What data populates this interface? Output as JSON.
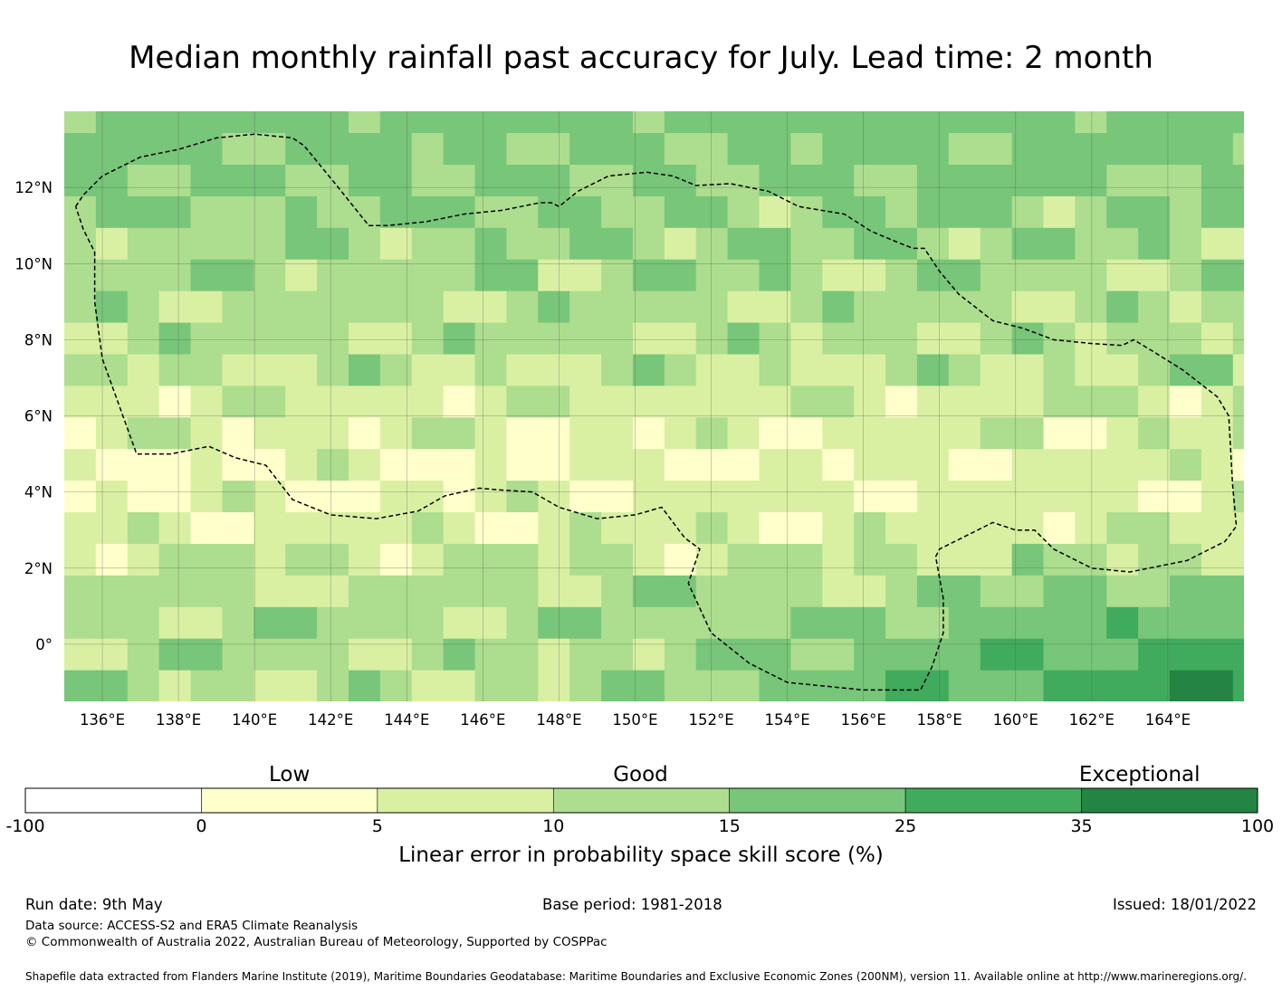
{
  "title": "Median monthly rainfall past accuracy for July. Lead time: 2 month",
  "map": {
    "lon_range": [
      135,
      166
    ],
    "lat_range": [
      -1.5,
      14
    ],
    "x_ticks": [
      {
        "value": 136,
        "label": "136°E"
      },
      {
        "value": 138,
        "label": "138°E"
      },
      {
        "value": 140,
        "label": "140°E"
      },
      {
        "value": 142,
        "label": "142°E"
      },
      {
        "value": 144,
        "label": "144°E"
      },
      {
        "value": 146,
        "label": "146°E"
      },
      {
        "value": 148,
        "label": "148°E"
      },
      {
        "value": 150,
        "label": "150°E"
      },
      {
        "value": 152,
        "label": "152°E"
      },
      {
        "value": 154,
        "label": "154°E"
      },
      {
        "value": 156,
        "label": "156°E"
      },
      {
        "value": 158,
        "label": "158°E"
      },
      {
        "value": 160,
        "label": "160°E"
      },
      {
        "value": 162,
        "label": "162°E"
      },
      {
        "value": 164,
        "label": "164°E"
      }
    ],
    "y_ticks": [
      {
        "value": 12,
        "label": "12°N"
      },
      {
        "value": 10,
        "label": "10°N"
      },
      {
        "value": 8,
        "label": "8°N"
      },
      {
        "value": 6,
        "label": "6°N"
      },
      {
        "value": 4,
        "label": "4°N"
      },
      {
        "value": 2,
        "label": "2°N"
      },
      {
        "value": 0,
        "label": "0°"
      }
    ],
    "grid": true,
    "eez_boundary": [
      [
        135.3,
        11.5
      ],
      [
        135.5,
        11.8
      ],
      [
        136.0,
        12.3
      ],
      [
        137.0,
        12.8
      ],
      [
        138.0,
        13.0
      ],
      [
        139.0,
        13.3
      ],
      [
        140.0,
        13.4
      ],
      [
        141.0,
        13.3
      ],
      [
        141.3,
        13.1
      ],
      [
        142.2,
        12.0
      ],
      [
        143.0,
        11.0
      ],
      [
        143.5,
        11.0
      ],
      [
        144.5,
        11.1
      ],
      [
        145.5,
        11.3
      ],
      [
        146.5,
        11.4
      ],
      [
        147.5,
        11.6
      ],
      [
        147.8,
        11.6
      ],
      [
        148.0,
        11.5
      ],
      [
        148.5,
        11.9
      ],
      [
        149.3,
        12.3
      ],
      [
        150.3,
        12.4
      ],
      [
        151.0,
        12.3
      ],
      [
        151.6,
        12.05
      ],
      [
        152.5,
        12.1
      ],
      [
        153.5,
        11.9
      ],
      [
        154.3,
        11.5
      ],
      [
        155.5,
        11.3
      ],
      [
        156.2,
        10.85
      ],
      [
        156.8,
        10.6
      ],
      [
        157.3,
        10.4
      ],
      [
        157.6,
        10.4
      ],
      [
        158.0,
        9.8
      ],
      [
        158.5,
        9.2
      ],
      [
        159.4,
        8.5
      ],
      [
        160.2,
        8.3
      ],
      [
        161.0,
        8.0
      ],
      [
        162.0,
        7.9
      ],
      [
        162.8,
        7.85
      ],
      [
        163.1,
        8.0
      ],
      [
        163.6,
        7.7
      ],
      [
        164.4,
        7.2
      ],
      [
        165.3,
        6.5
      ],
      [
        165.6,
        6.0
      ],
      [
        165.7,
        4.2
      ],
      [
        165.8,
        3.1
      ],
      [
        165.5,
        2.7
      ],
      [
        164.5,
        2.2
      ],
      [
        163.0,
        1.9
      ],
      [
        162.0,
        2.0
      ],
      [
        161.0,
        2.5
      ],
      [
        160.5,
        3.0
      ],
      [
        160.0,
        3.0
      ],
      [
        159.4,
        3.2
      ],
      [
        158.8,
        2.9
      ],
      [
        158.0,
        2.5
      ],
      [
        157.9,
        2.3
      ],
      [
        158.1,
        1.2
      ],
      [
        158.1,
        0.3
      ],
      [
        157.8,
        -0.6
      ],
      [
        157.5,
        -1.2
      ],
      [
        156.0,
        -1.2
      ],
      [
        154.0,
        -1.0
      ],
      [
        153.0,
        -0.5
      ],
      [
        152.0,
        0.3
      ],
      [
        151.4,
        1.6
      ],
      [
        151.7,
        2.5
      ],
      [
        151.3,
        2.8
      ],
      [
        150.7,
        3.6
      ],
      [
        150.0,
        3.4
      ],
      [
        149.0,
        3.3
      ],
      [
        148.0,
        3.6
      ],
      [
        147.3,
        4.0
      ],
      [
        146.5,
        4.05
      ],
      [
        145.9,
        4.1
      ],
      [
        145.0,
        3.9
      ],
      [
        144.3,
        3.5
      ],
      [
        143.2,
        3.3
      ],
      [
        142.0,
        3.4
      ],
      [
        141.0,
        3.8
      ],
      [
        140.3,
        4.7
      ],
      [
        139.5,
        4.9
      ],
      [
        138.8,
        5.2
      ],
      [
        137.8,
        5.0
      ],
      [
        136.9,
        5.0
      ],
      [
        136.0,
        7.5
      ],
      [
        135.8,
        9.0
      ],
      [
        135.8,
        10.3
      ],
      [
        135.5,
        10.9
      ],
      [
        135.3,
        11.5
      ]
    ]
  },
  "colorbar": {
    "categories": [
      {
        "label": "Low",
        "position": 0.215
      },
      {
        "label": "Good",
        "position": 0.5
      },
      {
        "label": "Exceptional",
        "position": 0.905
      }
    ],
    "bins": [
      {
        "from": "-100",
        "to": "0",
        "color": "#ffffff"
      },
      {
        "from": "0",
        "to": "5",
        "color": "#ffffcc"
      },
      {
        "from": "5",
        "to": "10",
        "color": "#d9f0a3"
      },
      {
        "from": "10",
        "to": "15",
        "color": "#addd8e"
      },
      {
        "from": "15",
        "to": "25",
        "color": "#78c679"
      },
      {
        "from": "25",
        "to": "35",
        "color": "#41ab5d"
      },
      {
        "from": "35",
        "to": "100",
        "color": "#238443"
      }
    ],
    "ticks": [
      "-100",
      "0",
      "5",
      "10",
      "15",
      "25",
      "35",
      "100"
    ],
    "label": "Linear error in probability space skill score (%)"
  },
  "footer": {
    "run_date": "Run date: 9th May",
    "base_period": "Base period: 1981-2018",
    "issued": "Issued: 18/01/2022",
    "data_source": "Data source: ACCESS-S2 and ERA5 Climate Reanalysis",
    "copyright": "© Commonwealth of Australia 2022, Australian Bureau of Meteorology, Supported by COSPPac",
    "shapefile": "Shapefile data extracted from Flanders Marine Institute (2019), Maritime Boundaries Geodatabase: Maritime Boundaries and Exclusive Economic Zones (200NM), version 11. Available online at http://www.marineregions.org/."
  }
}
